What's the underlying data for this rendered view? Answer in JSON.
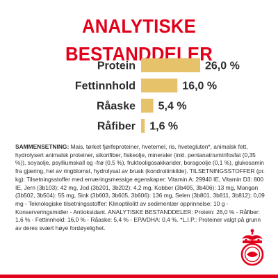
{
  "page": {
    "title": "ANALYTISKE BESTANDDELER"
  },
  "chart_data": {
    "type": "bar",
    "orientation": "horizontal",
    "categories": [
      "Protein",
      "Fettinnhold",
      "Råaske",
      "Råfiber"
    ],
    "values": [
      26.0,
      16.0,
      5.4,
      1.6
    ],
    "value_labels": [
      "26,0 %",
      "16,0 %",
      "5,4 %",
      "1,6 %"
    ],
    "xlim": [
      0,
      26
    ],
    "grid": false,
    "legend": "none",
    "bar_color": "#e6c26a",
    "label_color": "#2b2b2b"
  },
  "composition": {
    "lead": "SAMMENSETNING:",
    "text": " Mais, tørket fjørfeproteiner, hvetemel, ris, hvetegluten*, animalsk fett, hydrolysert animalsk proteiner, sikorifiber, fiskeolje, mineraler (inkl. pentanatriumtrifosfat (0,35 %)), soyaolje, psylliumskall og -frø (0,5 %), fruktooligosakkarider, boragoolje (0,1 %), glukosamin fra gjæring, hel av ringblomst, hydrolysat av brusk (kondroitinkilde). TILSETNINGSSTOFFER (pr. kg): Tilsetningsstoffer med ernæringsmessige egenskaper: Vitamin A: 29940 IE, Vitamin D3: 800 IE, Jern (3b103): 42 mg, Jod (3b201, 3b202): 4,2 mg, Kobber (3b405, 3b406): 13 mg, Mangan (3b502, 3b504): 55 mg, Sink (3b603, 3b605, 3b606): 136 mg, Selen (3b801, 3b811, 3b812): 0,09 mg - Teknologiske tilsetningsstoffer: Klinoptilolitt av sedimentær opprinnelse: 10 g - Konserveringsmidler - Antioksidant. ANALYTISKE BESTANDDELER: Protein: 26,0 % - Råfiber: 1,6 % - Fettinnhold: 16,0 % - Råaske: 5,4 % - EPA/DHA: 0,4 %. *L.I.P.: Proteiner valgt på grunn av deres svært høye fordøyelighet."
  },
  "colors": {
    "brand_red": "#e2001a",
    "bar": "#e6c26a",
    "text": "#2b2b2b"
  },
  "logo": {
    "name": "royal-canin-crown-logo"
  }
}
